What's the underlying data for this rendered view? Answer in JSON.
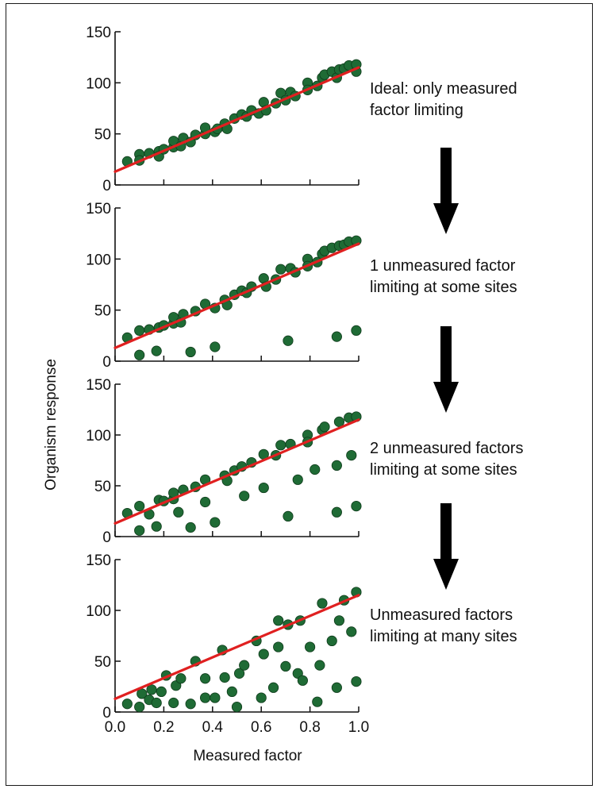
{
  "chart_data": {
    "type": "scatter",
    "xlabel": "Measured factor",
    "ylabel": "Organism response",
    "xlim": [
      0.0,
      1.0
    ],
    "ylim": [
      0,
      150
    ],
    "x_ticks": [
      "0.0",
      "0.2",
      "0.4",
      "0.6",
      "0.8",
      "1.0"
    ],
    "y_ticks": [
      "0",
      "50",
      "100",
      "150"
    ],
    "fit_line": {
      "x": [
        0.0,
        1.0
      ],
      "y": [
        13,
        115
      ]
    },
    "colors": {
      "points": "#1f6b35",
      "point_edge": "#0e3a1a",
      "fit_line": "#e02020",
      "arrow": "#000000"
    },
    "panels": [
      {
        "annotation": [
          "Ideal: only measured",
          "factor limiting"
        ],
        "points": [
          [
            0.05,
            23
          ],
          [
            0.1,
            30
          ],
          [
            0.1,
            24
          ],
          [
            0.14,
            31
          ],
          [
            0.18,
            33
          ],
          [
            0.18,
            28
          ],
          [
            0.2,
            35
          ],
          [
            0.24,
            37
          ],
          [
            0.24,
            43
          ],
          [
            0.27,
            38
          ],
          [
            0.28,
            46
          ],
          [
            0.31,
            42
          ],
          [
            0.33,
            49
          ],
          [
            0.37,
            50
          ],
          [
            0.37,
            56
          ],
          [
            0.41,
            52
          ],
          [
            0.42,
            55
          ],
          [
            0.45,
            60
          ],
          [
            0.46,
            55
          ],
          [
            0.49,
            65
          ],
          [
            0.52,
            69
          ],
          [
            0.54,
            67
          ],
          [
            0.56,
            73
          ],
          [
            0.59,
            70
          ],
          [
            0.61,
            81
          ],
          [
            0.62,
            73
          ],
          [
            0.66,
            80
          ],
          [
            0.68,
            90
          ],
          [
            0.7,
            83
          ],
          [
            0.72,
            91
          ],
          [
            0.74,
            87
          ],
          [
            0.79,
            100
          ],
          [
            0.79,
            93
          ],
          [
            0.83,
            97
          ],
          [
            0.85,
            105
          ],
          [
            0.86,
            108
          ],
          [
            0.89,
            111
          ],
          [
            0.91,
            105
          ],
          [
            0.92,
            113
          ],
          [
            0.94,
            114
          ],
          [
            0.96,
            117
          ],
          [
            0.99,
            111
          ],
          [
            0.99,
            118
          ]
        ]
      },
      {
        "annotation": [
          "1 unmeasured factor",
          "limiting at some sites"
        ],
        "points": [
          [
            0.05,
            23
          ],
          [
            0.1,
            30
          ],
          [
            0.14,
            31
          ],
          [
            0.18,
            33
          ],
          [
            0.2,
            35
          ],
          [
            0.24,
            37
          ],
          [
            0.24,
            43
          ],
          [
            0.27,
            38
          ],
          [
            0.28,
            46
          ],
          [
            0.33,
            49
          ],
          [
            0.37,
            56
          ],
          [
            0.41,
            52
          ],
          [
            0.45,
            60
          ],
          [
            0.46,
            55
          ],
          [
            0.49,
            65
          ],
          [
            0.52,
            69
          ],
          [
            0.54,
            67
          ],
          [
            0.56,
            73
          ],
          [
            0.61,
            81
          ],
          [
            0.62,
            73
          ],
          [
            0.66,
            80
          ],
          [
            0.68,
            90
          ],
          [
            0.72,
            91
          ],
          [
            0.74,
            87
          ],
          [
            0.79,
            100
          ],
          [
            0.79,
            93
          ],
          [
            0.83,
            97
          ],
          [
            0.85,
            105
          ],
          [
            0.86,
            108
          ],
          [
            0.89,
            111
          ],
          [
            0.92,
            113
          ],
          [
            0.94,
            114
          ],
          [
            0.96,
            117
          ],
          [
            0.99,
            118
          ],
          [
            0.1,
            6
          ],
          [
            0.17,
            10
          ],
          [
            0.31,
            9
          ],
          [
            0.41,
            14
          ],
          [
            0.71,
            20
          ],
          [
            0.91,
            24
          ],
          [
            0.99,
            30
          ]
        ]
      },
      {
        "annotation": [
          "2 unmeasured factors",
          "limiting at some sites"
        ],
        "points": [
          [
            0.05,
            23
          ],
          [
            0.1,
            30
          ],
          [
            0.18,
            36
          ],
          [
            0.2,
            35
          ],
          [
            0.24,
            37
          ],
          [
            0.24,
            43
          ],
          [
            0.28,
            46
          ],
          [
            0.33,
            49
          ],
          [
            0.37,
            56
          ],
          [
            0.45,
            60
          ],
          [
            0.46,
            55
          ],
          [
            0.49,
            65
          ],
          [
            0.52,
            69
          ],
          [
            0.56,
            73
          ],
          [
            0.61,
            81
          ],
          [
            0.66,
            80
          ],
          [
            0.68,
            90
          ],
          [
            0.72,
            91
          ],
          [
            0.79,
            100
          ],
          [
            0.79,
            93
          ],
          [
            0.85,
            105
          ],
          [
            0.86,
            108
          ],
          [
            0.92,
            113
          ],
          [
            0.96,
            117
          ],
          [
            0.99,
            118
          ],
          [
            0.14,
            22
          ],
          [
            0.26,
            24
          ],
          [
            0.37,
            34
          ],
          [
            0.53,
            40
          ],
          [
            0.61,
            48
          ],
          [
            0.75,
            56
          ],
          [
            0.82,
            66
          ],
          [
            0.91,
            70
          ],
          [
            0.97,
            80
          ],
          [
            0.1,
            6
          ],
          [
            0.17,
            10
          ],
          [
            0.31,
            9
          ],
          [
            0.41,
            14
          ],
          [
            0.71,
            20
          ],
          [
            0.91,
            24
          ],
          [
            0.99,
            30
          ]
        ]
      },
      {
        "annotation": [
          "Unmeasured factors",
          "limiting at many sites"
        ],
        "points": [
          [
            0.05,
            8
          ],
          [
            0.1,
            5
          ],
          [
            0.11,
            18
          ],
          [
            0.14,
            12
          ],
          [
            0.15,
            22
          ],
          [
            0.17,
            9
          ],
          [
            0.19,
            20
          ],
          [
            0.21,
            36
          ],
          [
            0.24,
            9
          ],
          [
            0.25,
            26
          ],
          [
            0.27,
            33
          ],
          [
            0.31,
            8
          ],
          [
            0.33,
            50
          ],
          [
            0.37,
            14
          ],
          [
            0.37,
            33
          ],
          [
            0.41,
            14
          ],
          [
            0.44,
            61
          ],
          [
            0.45,
            34
          ],
          [
            0.48,
            20
          ],
          [
            0.5,
            5
          ],
          [
            0.51,
            38
          ],
          [
            0.53,
            46
          ],
          [
            0.58,
            70
          ],
          [
            0.6,
            14
          ],
          [
            0.61,
            57
          ],
          [
            0.65,
            24
          ],
          [
            0.67,
            90
          ],
          [
            0.67,
            64
          ],
          [
            0.7,
            45
          ],
          [
            0.71,
            86
          ],
          [
            0.75,
            38
          ],
          [
            0.76,
            90
          ],
          [
            0.77,
            31
          ],
          [
            0.8,
            64
          ],
          [
            0.83,
            10
          ],
          [
            0.84,
            46
          ],
          [
            0.85,
            107
          ],
          [
            0.89,
            70
          ],
          [
            0.91,
            24
          ],
          [
            0.92,
            90
          ],
          [
            0.94,
            110
          ],
          [
            0.97,
            79
          ],
          [
            0.99,
            118
          ],
          [
            0.99,
            30
          ]
        ]
      }
    ]
  }
}
